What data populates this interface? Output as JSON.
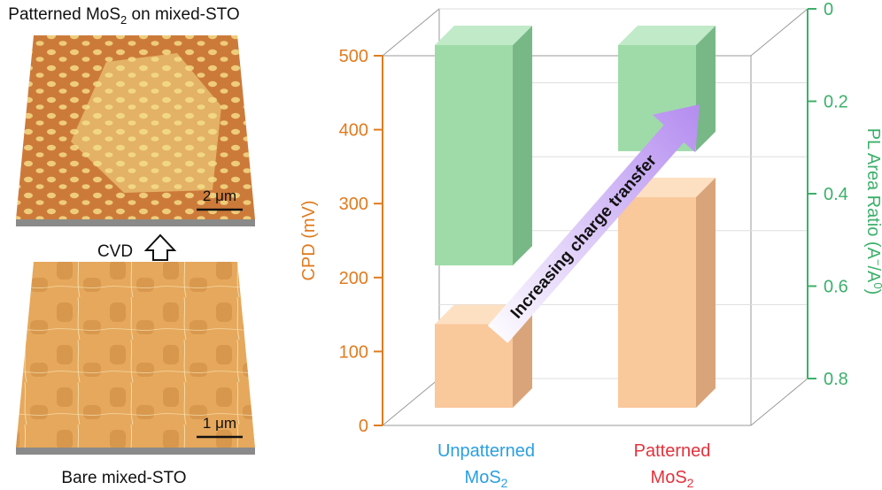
{
  "panels": {
    "top_title_pre": "Patterned MoS",
    "top_title_sub": "2",
    "top_title_post": " on mixed-STO",
    "top_scale": "2 μm",
    "arrow_label": "CVD",
    "bottom_scale": "1 μm",
    "bottom_title": "Bare mixed-STO"
  },
  "colors": {
    "cpd_axis": "#e07b1f",
    "pl_axis": "#3cb06a",
    "cpd_bar": "#f9c89b",
    "pl_bar": "#9fdba8",
    "unpatterned_label": "#2a9fe0",
    "patterned_label": "#e2323c",
    "arrow_start": "#ffffff",
    "arrow_end": "#b48cf0"
  },
  "chart_data": {
    "type": "bar",
    "categories": [
      {
        "line1": "Unpatterned",
        "line2": "MoS",
        "sub": "2"
      },
      {
        "line1": "Patterned",
        "line2": "MoS",
        "sub": "2"
      }
    ],
    "series": [
      {
        "axis": "left",
        "values": [
          125,
          315
        ]
      },
      {
        "axis": "right",
        "values": [
          0.54,
          0.26
        ]
      }
    ],
    "left_axis": {
      "label": "CPD (mV)",
      "ylim": [
        0,
        500
      ],
      "ticks": [
        0,
        100,
        200,
        300,
        400,
        500
      ]
    },
    "right_axis": {
      "label_pre": "PL Area Ratio (A",
      "label_sup1": "−",
      "label_mid": "/A",
      "label_sup2": "0",
      "label_post": ")",
      "ylim": [
        0.8,
        0
      ],
      "ticks": [
        "0",
        "0.2",
        "0.4",
        "0.6",
        "0.8"
      ]
    },
    "annotation": "Increasing charge transfer",
    "grid": true
  }
}
